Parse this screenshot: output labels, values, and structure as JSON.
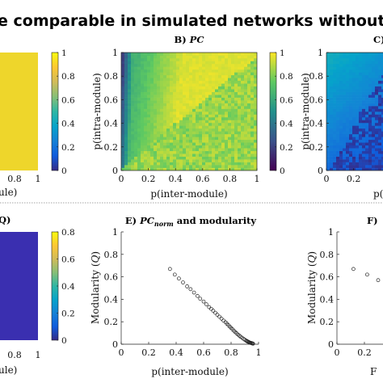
{
  "figure": {
    "title": "e comparable in simulated networks without a",
    "colors": {
      "viridis": [
        "#440154",
        "#3b528b",
        "#21918c",
        "#5ec962",
        "#fde725"
      ],
      "parula": [
        "#352a87",
        "#0f5cdd",
        "#1481d6",
        "#06a4ca",
        "#2eb7a4",
        "#87bf77",
        "#d1bb59",
        "#fec832",
        "#f9fb0e"
      ],
      "separator": "#888888",
      "marker": "#222222"
    }
  },
  "chart_data": [
    {
      "id": "A",
      "type": "heatmap",
      "title": "",
      "x_ticks": [
        "0.8",
        "1"
      ],
      "xlabel": "ule)",
      "ylabel": "",
      "colorbar": {
        "range": [
          0,
          1
        ],
        "ticks": [
          "0",
          "0.2",
          "0.4",
          "0.6",
          "0.8",
          "1"
        ],
        "colormap": "parula"
      },
      "value_description": "nearly uniform high value ≈ 0.9"
    },
    {
      "id": "B",
      "type": "heatmap",
      "title": "B) PC",
      "title_prefix": "B) ",
      "title_italic": "PC",
      "x_ticks": [
        "0",
        "0.2",
        "0.4",
        "0.6",
        "0.8",
        "1"
      ],
      "y_ticks": [
        "0",
        "0.2",
        "0.4",
        "0.6",
        "0.8",
        "1"
      ],
      "xlabel": "p(inter-module)",
      "ylabel": "p(intra-module)",
      "xlim": [
        0,
        1
      ],
      "ylim": [
        0,
        1
      ],
      "colorbar": {
        "range": [
          0,
          1
        ],
        "ticks": [
          "0",
          "0.2",
          "0.4",
          "0.6",
          "0.8",
          "1"
        ],
        "colormap": "viridis"
      }
    },
    {
      "id": "C",
      "type": "heatmap",
      "title": "C)",
      "y_ticks": [
        "0",
        "0.2",
        "0.4",
        "0.6",
        "0.8",
        "1"
      ],
      "x_ticks": [
        "0",
        "0.2"
      ],
      "xlabel": "p(",
      "ylabel": "p(intra-module)",
      "colormap": "parula"
    },
    {
      "id": "D",
      "type": "heatmap",
      "title": "Q)",
      "x_ticks": [
        "0.8",
        "1"
      ],
      "xlabel": "ule)",
      "colorbar": {
        "range": [
          0,
          0.8
        ],
        "ticks": [
          "0",
          "0.2",
          "0.4",
          "0.6",
          "0.8"
        ],
        "colormap": "parula"
      },
      "value_description": "nearly uniform low value ≈ 0.1"
    },
    {
      "id": "E",
      "type": "scatter",
      "title": "E) PCnorm and modularity",
      "title_prefix": "E) ",
      "title_italic": "PC",
      "title_sub": "norm",
      "title_suffix": " and modularity",
      "xlabel": "p(inter-module)",
      "ylabel": "Modularity (Q)",
      "ylabel_plain": "Modularity (",
      "ylabel_italic": "Q",
      "ylabel_close": ")",
      "xlim": [
        0,
        1
      ],
      "ylim": [
        0,
        1
      ],
      "x_ticks": [
        "0",
        "0.2",
        "0.4",
        "0.6",
        "0.8",
        "1"
      ],
      "y_ticks": [
        "0",
        "0.2",
        "0.4",
        "0.6",
        "0.8",
        "1"
      ],
      "x": [
        0.355,
        0.39,
        0.42,
        0.45,
        0.48,
        0.505,
        0.53,
        0.555,
        0.575,
        0.6,
        0.62,
        0.64,
        0.655,
        0.67,
        0.685,
        0.7,
        0.715,
        0.73,
        0.745,
        0.76,
        0.77,
        0.78,
        0.79,
        0.8,
        0.81,
        0.82,
        0.83,
        0.84,
        0.85,
        0.86,
        0.87,
        0.88,
        0.89,
        0.9,
        0.91,
        0.915,
        0.92,
        0.925,
        0.93,
        0.935,
        0.94,
        0.945,
        0.95,
        0.955,
        0.96
      ],
      "y": [
        0.67,
        0.62,
        0.585,
        0.55,
        0.515,
        0.49,
        0.46,
        0.43,
        0.405,
        0.38,
        0.355,
        0.33,
        0.315,
        0.298,
        0.28,
        0.262,
        0.245,
        0.228,
        0.21,
        0.195,
        0.182,
        0.17,
        0.157,
        0.145,
        0.133,
        0.12,
        0.108,
        0.097,
        0.086,
        0.076,
        0.066,
        0.057,
        0.048,
        0.04,
        0.032,
        0.028,
        0.024,
        0.021,
        0.018,
        0.015,
        0.013,
        0.011,
        0.009,
        0.007,
        0.005
      ]
    },
    {
      "id": "F",
      "type": "scatter",
      "title": "F)",
      "ylabel": "Modularity (Q)",
      "ylabel_plain": "Modularity (",
      "ylabel_italic": "Q",
      "ylabel_close": ")",
      "y_ticks": [
        "0",
        "0.2",
        "0.4",
        "0.6",
        "0.8",
        "1"
      ],
      "x_ticks": [
        "0",
        "0.2"
      ],
      "xlabel": "F",
      "x": [
        0.12,
        0.22,
        0.3
      ],
      "y": [
        0.67,
        0.62,
        0.57
      ]
    }
  ]
}
